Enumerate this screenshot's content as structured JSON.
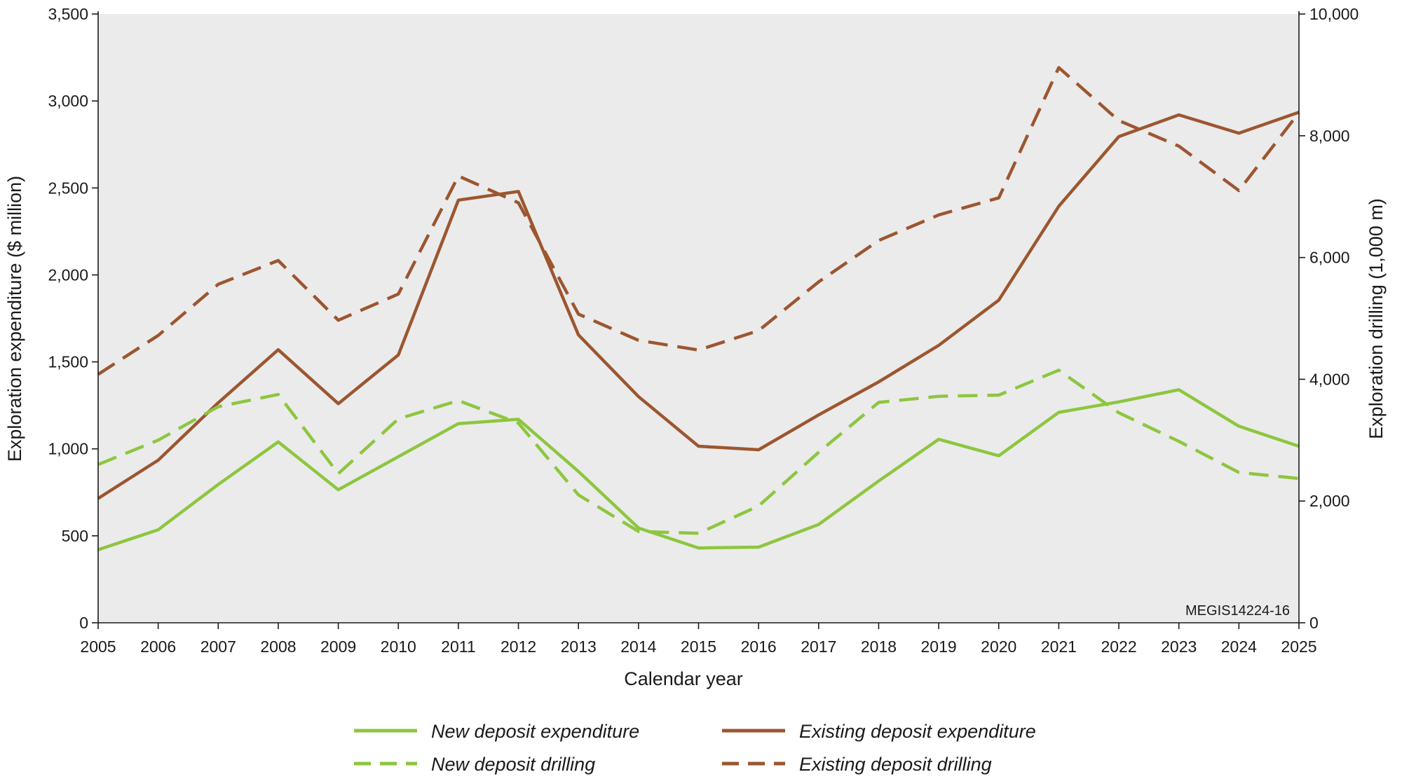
{
  "chart_data": {
    "type": "line",
    "xlabel": "Calendar year",
    "ylabel_left": "Exploration expenditure ($ million)",
    "ylabel_right": "Exploration drilling (1,000 m)",
    "ylim_left": [
      0,
      3500
    ],
    "ylim_right": [
      0,
      10000
    ],
    "yticks_left": [
      0,
      500,
      1000,
      1500,
      2000,
      2500,
      3000,
      3500
    ],
    "yticks_left_labels": [
      "0",
      "500",
      "1,000",
      "1,500",
      "2,000",
      "2,500",
      "3,000",
      "3,500"
    ],
    "yticks_right": [
      0,
      2000,
      4000,
      6000,
      8000,
      10000
    ],
    "yticks_right_labels": [
      "0",
      "2,000",
      "4,000",
      "6,000",
      "8,000",
      "10,000"
    ],
    "categories": [
      "2005",
      "2006",
      "2007",
      "2008",
      "2009",
      "2010",
      "2011",
      "2012",
      "2013",
      "2014",
      "2015",
      "2016",
      "2017",
      "2018",
      "2019",
      "2020",
      "2021",
      "2022",
      "2023",
      "2024",
      "2025"
    ],
    "grid": false,
    "plot_background": "#ebebeb",
    "legend_position": "bottom",
    "annotation": "MEGIS14224-16",
    "series": [
      {
        "name": "New deposit expenditure",
        "axis": "left",
        "style": "solid",
        "color": "#8dc63f",
        "values": [
          420,
          535,
          795,
          1040,
          765,
          955,
          1145,
          1170,
          870,
          545,
          430,
          435,
          565,
          815,
          1055,
          960,
          1210,
          1270,
          1340,
          1130,
          1015
        ]
      },
      {
        "name": "Existing deposit expenditure",
        "axis": "left",
        "style": "solid",
        "color": "#9c5630",
        "values": [
          715,
          935,
          1265,
          1570,
          1260,
          1540,
          2430,
          2480,
          1655,
          1300,
          1015,
          995,
          1195,
          1385,
          1595,
          1855,
          2395,
          2795,
          2920,
          2815,
          2935
        ]
      },
      {
        "name": "New deposit drilling",
        "axis": "right",
        "style": "dashed",
        "color": "#8dc63f",
        "values": [
          2600,
          3000,
          3550,
          3750,
          2450,
          3350,
          3650,
          3280,
          2100,
          1500,
          1470,
          1920,
          2800,
          3620,
          3720,
          3740,
          4150,
          3450,
          2980,
          2470,
          2370
        ]
      },
      {
        "name": "Existing deposit drilling",
        "axis": "right",
        "style": "dashed",
        "color": "#9c5630",
        "values": [
          4080,
          4720,
          5560,
          5950,
          4970,
          5400,
          7340,
          6900,
          5070,
          4640,
          4480,
          4800,
          5600,
          6280,
          6700,
          6980,
          9120,
          8250,
          7830,
          7100,
          8380
        ]
      }
    ]
  }
}
